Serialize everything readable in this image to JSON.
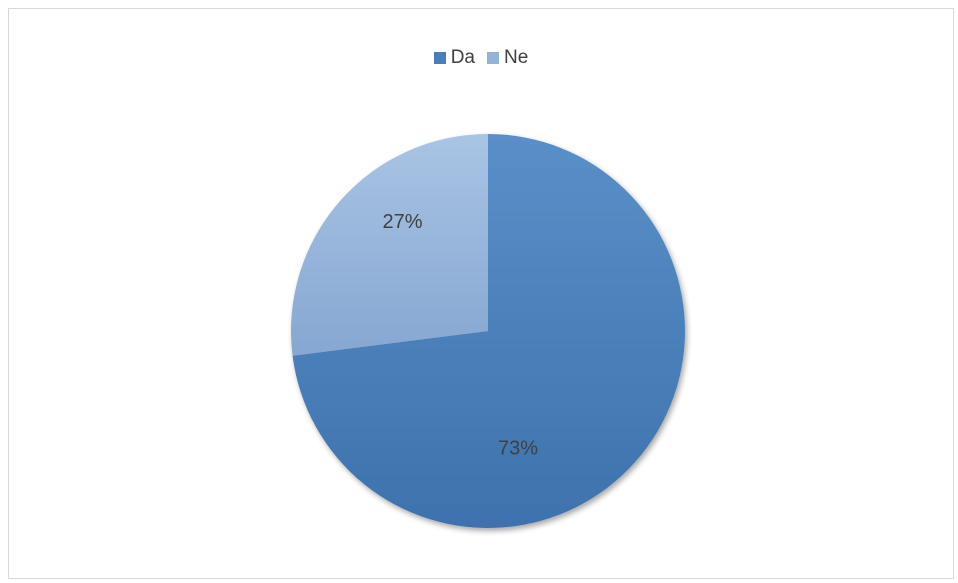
{
  "chart_data": {
    "type": "pie",
    "categories": [
      "Da",
      "Ne"
    ],
    "values": [
      73,
      27
    ],
    "labels": [
      "73%",
      "27%"
    ],
    "legend": "top-center",
    "colors": [
      "#4a7ebb",
      "#95b3d7"
    ]
  },
  "legend": {
    "items": [
      {
        "label": "Da",
        "color": "#4a7ebb"
      },
      {
        "label": "Ne",
        "color": "#95b3d7"
      }
    ]
  }
}
